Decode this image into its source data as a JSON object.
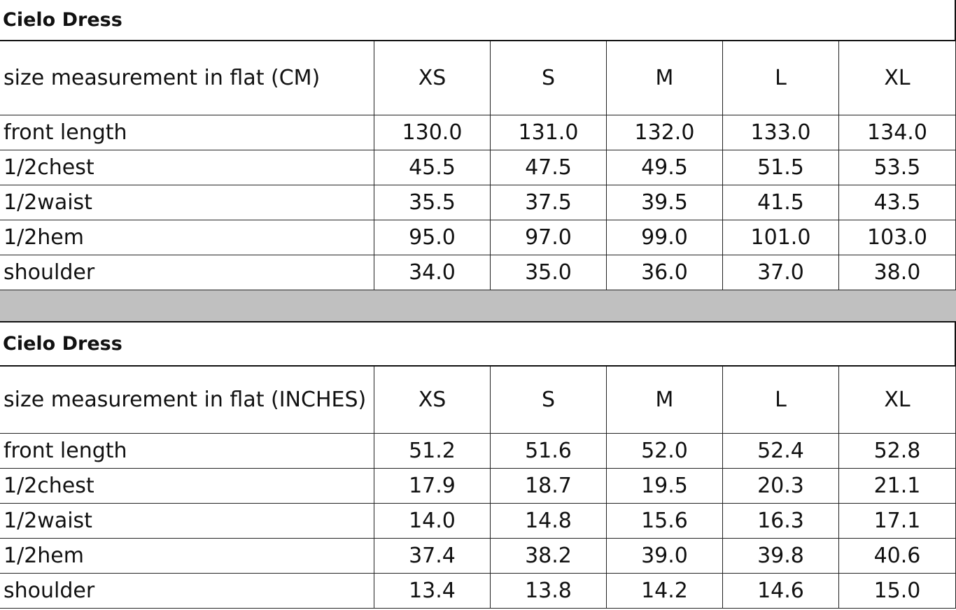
{
  "tables": [
    {
      "title": "Cielo Dress",
      "header": [
        "size measurement in flat (CM)",
        "XS",
        "S",
        "M",
        "L",
        "XL"
      ],
      "rows": [
        [
          "front length",
          "130.0",
          "131.0",
          "132.0",
          "133.0",
          "134.0"
        ],
        [
          "1/2chest",
          "45.5",
          "47.5",
          "49.5",
          "51.5",
          "53.5"
        ],
        [
          "1/2waist",
          "35.5",
          "37.5",
          "39.5",
          "41.5",
          "43.5"
        ],
        [
          "1/2hem",
          "95.0",
          "97.0",
          "99.0",
          "101.0",
          "103.0"
        ],
        [
          "shoulder",
          "34.0",
          "35.0",
          "36.0",
          "37.0",
          "38.0"
        ]
      ]
    },
    {
      "title": "Cielo Dress",
      "header": [
        "size measurement in flat (INCHES)",
        "XS",
        "S",
        "M",
        "L",
        "XL"
      ],
      "rows": [
        [
          "front length",
          "51.2",
          "51.6",
          "52.0",
          "52.4",
          "52.8"
        ],
        [
          "1/2chest",
          "17.9",
          "18.7",
          "19.5",
          "20.3",
          "21.1"
        ],
        [
          "1/2waist",
          "14.0",
          "14.8",
          "15.6",
          "16.3",
          "17.1"
        ],
        [
          "1/2hem",
          "37.4",
          "38.2",
          "39.0",
          "39.8",
          "40.6"
        ],
        [
          "shoulder",
          "13.4",
          "13.8",
          "14.2",
          "14.6",
          "15.0"
        ]
      ]
    }
  ]
}
